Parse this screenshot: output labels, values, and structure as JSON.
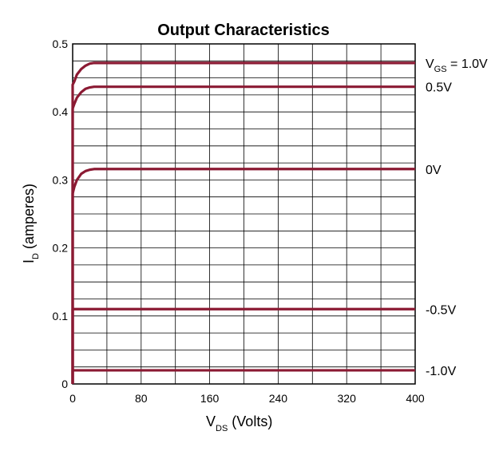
{
  "chart_data": {
    "type": "line",
    "title": "Output Characteristics",
    "xlabel": {
      "main": "V",
      "sub": "DS",
      "rest": " (Volts)"
    },
    "ylabel": {
      "main": "I",
      "sub": "D",
      "rest": " (amperes)"
    },
    "xlim": [
      0,
      400
    ],
    "ylim": [
      0,
      0.5
    ],
    "x_ticks": [
      0,
      80,
      160,
      240,
      320,
      400
    ],
    "x_tick_labels": [
      "0",
      "80",
      "160",
      "240",
      "320",
      "400"
    ],
    "y_ticks": [
      0,
      0.1,
      0.2,
      0.3,
      0.4,
      0.5
    ],
    "y_tick_labels": [
      "0",
      "0.1",
      "0.2",
      "0.3",
      "0.4",
      "0.5"
    ],
    "grid": true,
    "line_color": "#8b1a33",
    "series": [
      {
        "label_main": "V",
        "label_sub": "GS",
        "label_rest": " = 1.0V",
        "label_prefix": "",
        "x": [
          0,
          2,
          5,
          10,
          15,
          20,
          25,
          30,
          400
        ],
        "y": [
          0.44,
          0.445,
          0.455,
          0.463,
          0.468,
          0.471,
          0.472,
          0.472,
          0.472
        ]
      },
      {
        "label_main": "",
        "label_sub": "",
        "label_rest": "",
        "label_prefix": "0.5V",
        "x": [
          0,
          2,
          5,
          10,
          15,
          20,
          25,
          30,
          400
        ],
        "y": [
          0.405,
          0.412,
          0.421,
          0.429,
          0.434,
          0.436,
          0.437,
          0.437,
          0.437
        ]
      },
      {
        "label_main": "",
        "label_sub": "",
        "label_rest": "",
        "label_prefix": "0V",
        "x": [
          0,
          2,
          5,
          10,
          15,
          20,
          25,
          30,
          400
        ],
        "y": [
          0.28,
          0.29,
          0.3,
          0.309,
          0.313,
          0.315,
          0.316,
          0.316,
          0.316
        ]
      },
      {
        "label_main": "",
        "label_sub": "",
        "label_rest": "",
        "label_prefix": "-0.5V",
        "x": [
          0,
          400
        ],
        "y": [
          0.11,
          0.11
        ]
      },
      {
        "label_main": "",
        "label_sub": "",
        "label_rest": "",
        "label_prefix": "-1.0V",
        "x": [
          0,
          400
        ],
        "y": [
          0.02,
          0.02
        ]
      }
    ]
  }
}
